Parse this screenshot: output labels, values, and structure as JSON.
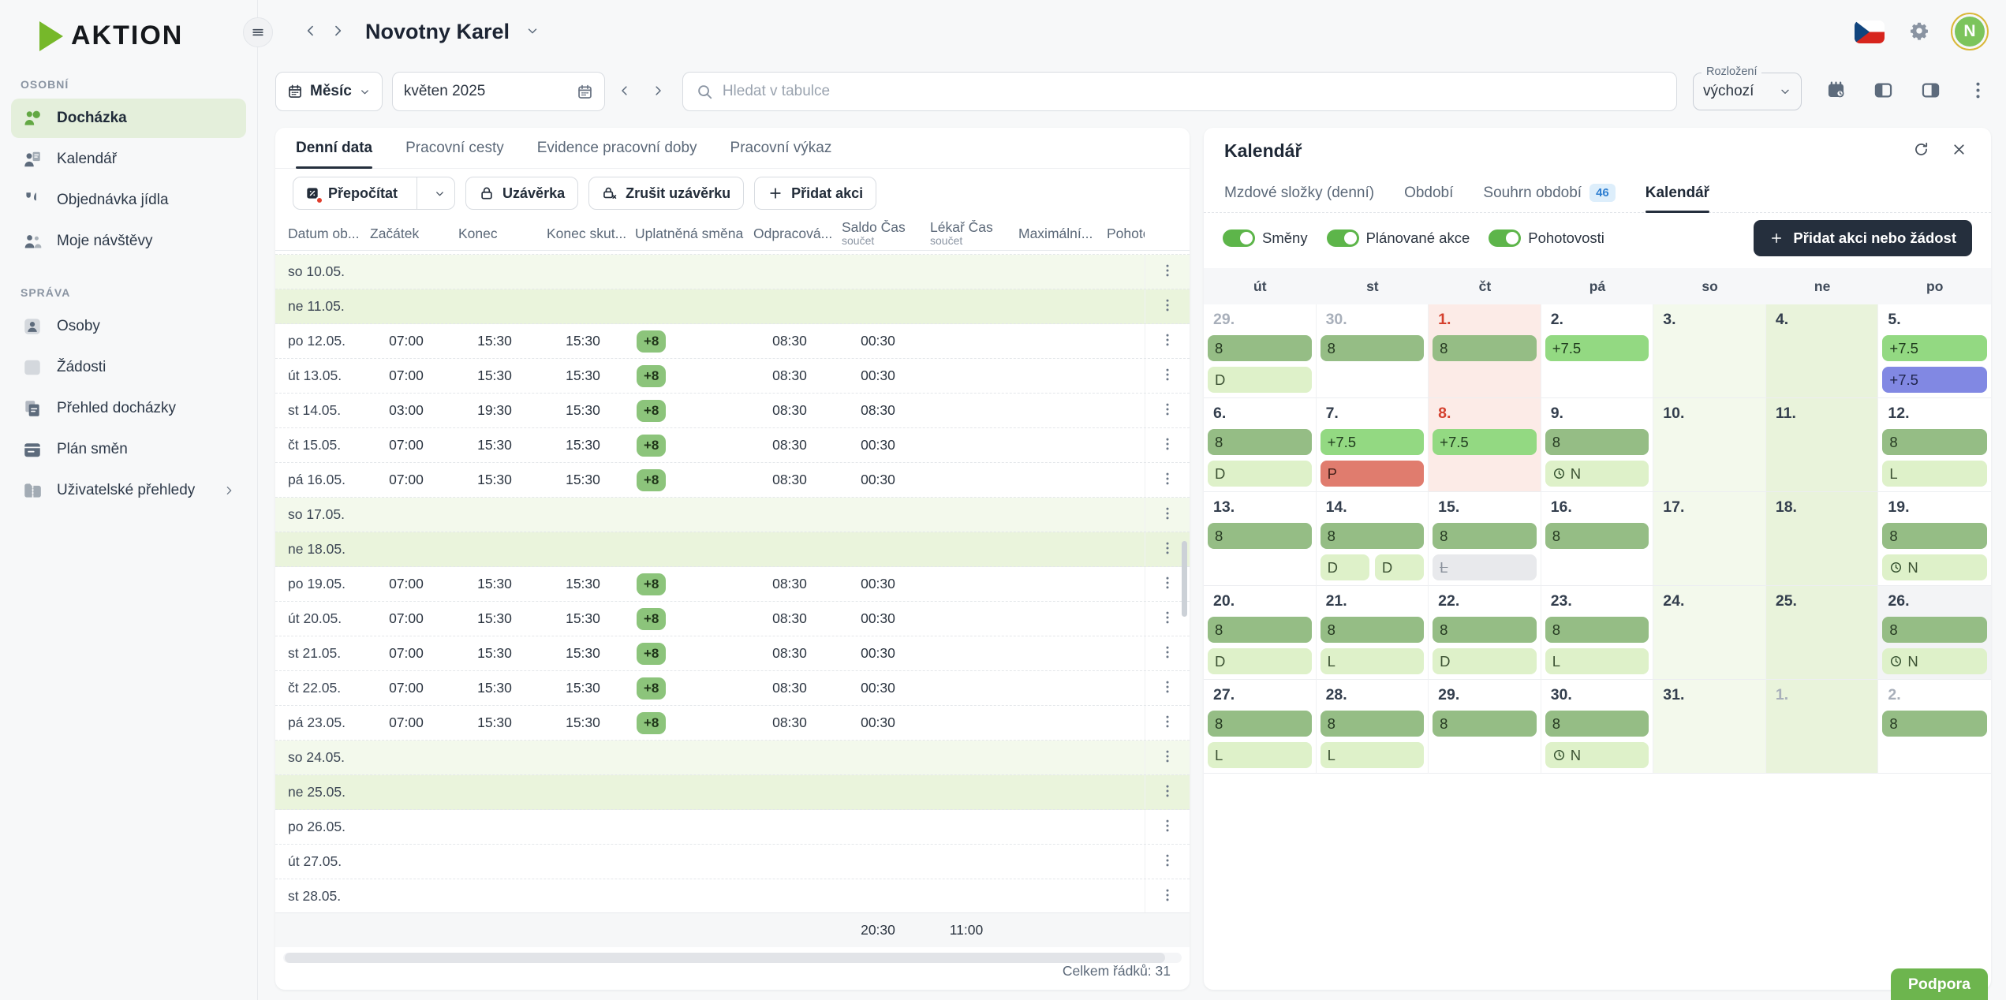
{
  "logo": {
    "text": "aktion"
  },
  "nav": {
    "title": "Novotny Karel"
  },
  "account": {
    "avatar_initial": "N"
  },
  "sidebar": {
    "sections": [
      {
        "label": "OSOBNÍ",
        "items": [
          {
            "label": "Docházka",
            "icon": "attendance",
            "active": true
          },
          {
            "label": "Kalendář",
            "icon": "calendar-person"
          },
          {
            "label": "Objednávka jídla",
            "icon": "meal"
          },
          {
            "label": "Moje návštěvy",
            "icon": "visits"
          }
        ]
      },
      {
        "label": "SPRÁVA",
        "items": [
          {
            "label": "Osoby",
            "icon": "person"
          },
          {
            "label": "Žádosti",
            "icon": "requests"
          },
          {
            "label": "Přehled docházky",
            "icon": "overview"
          },
          {
            "label": "Plán směn",
            "icon": "shift-plan"
          },
          {
            "label": "Uživatelské přehledy",
            "icon": "user-reports",
            "chevron": true
          }
        ]
      }
    ]
  },
  "toolbar": {
    "period_mode": "Měsíc",
    "period_value": "květen 2025",
    "search_placeholder": "Hledat v tabulce",
    "layout_label": "Rozložení",
    "layout_value": "výchozí"
  },
  "table": {
    "tabs": [
      {
        "label": "Denní data",
        "active": true
      },
      {
        "label": "Pracovní cesty"
      },
      {
        "label": "Evidence pracovní doby"
      },
      {
        "label": "Pracovní výkaz"
      }
    ],
    "actions": {
      "recalculate": "Přepočítat",
      "closure": "Uzávěrka",
      "cancel_closure": "Zrušit uzávěrku",
      "add_action": "Přidat akci"
    },
    "columns": [
      {
        "label": "Datum ob..."
      },
      {
        "label": "Začátek"
      },
      {
        "label": "Konec"
      },
      {
        "label": "Konec skut..."
      },
      {
        "label": "Uplatněná směna"
      },
      {
        "label": "Odpracová..."
      },
      {
        "label": "Saldo Čas",
        "sub": "součet"
      },
      {
        "label": "Lékař Čas",
        "sub": "součet"
      },
      {
        "label": "Maximální..."
      },
      {
        "label": "Pohoto"
      }
    ],
    "rows": [
      {
        "date": "so 10.05.",
        "kind": "sat"
      },
      {
        "date": "ne 11.05.",
        "kind": "sun"
      },
      {
        "date": "po 12.05.",
        "start": "07:00",
        "end": "15:30",
        "end_actual": "15:30",
        "shift": "+8",
        "worked": "08:30",
        "saldo": "00:30"
      },
      {
        "date": "út 13.05.",
        "start": "07:00",
        "end": "15:30",
        "end_actual": "15:30",
        "shift": "+8",
        "worked": "08:30",
        "saldo": "00:30"
      },
      {
        "date": "st 14.05.",
        "start": "03:00",
        "end": "19:30",
        "end_actual": "15:30",
        "shift": "+8",
        "worked": "08:30",
        "saldo": "08:30"
      },
      {
        "date": "čt 15.05.",
        "start": "07:00",
        "end": "15:30",
        "end_actual": "15:30",
        "shift": "+8",
        "worked": "08:30",
        "saldo": "00:30"
      },
      {
        "date": "pá 16.05.",
        "start": "07:00",
        "end": "15:30",
        "end_actual": "15:30",
        "shift": "+8",
        "worked": "08:30",
        "saldo": "00:30"
      },
      {
        "date": "so 17.05.",
        "kind": "sat"
      },
      {
        "date": "ne 18.05.",
        "kind": "sun"
      },
      {
        "date": "po 19.05.",
        "start": "07:00",
        "end": "15:30",
        "end_actual": "15:30",
        "shift": "+8",
        "worked": "08:30",
        "saldo": "00:30"
      },
      {
        "date": "út 20.05.",
        "start": "07:00",
        "end": "15:30",
        "end_actual": "15:30",
        "shift": "+8",
        "worked": "08:30",
        "saldo": "00:30"
      },
      {
        "date": "st 21.05.",
        "start": "07:00",
        "end": "15:30",
        "end_actual": "15:30",
        "shift": "+8",
        "worked": "08:30",
        "saldo": "00:30"
      },
      {
        "date": "čt 22.05.",
        "start": "07:00",
        "end": "15:30",
        "end_actual": "15:30",
        "shift": "+8",
        "worked": "08:30",
        "saldo": "00:30"
      },
      {
        "date": "pá 23.05.",
        "start": "07:00",
        "end": "15:30",
        "end_actual": "15:30",
        "shift": "+8",
        "worked": "08:30",
        "saldo": "00:30"
      },
      {
        "date": "so 24.05.",
        "kind": "sat"
      },
      {
        "date": "ne 25.05.",
        "kind": "sun"
      },
      {
        "date": "po 26.05."
      },
      {
        "date": "út 27.05."
      },
      {
        "date": "st 28.05."
      }
    ],
    "totals": {
      "saldo": "20:30",
      "doctor": "11:00"
    },
    "row_count": "Celkem řádků: 31"
  },
  "panel": {
    "title": "Kalendář",
    "tabs": [
      {
        "label": "Mzdové složky (denní)"
      },
      {
        "label": "Období"
      },
      {
        "label": "Souhrn období",
        "badge": "46"
      },
      {
        "label": "Kalendář",
        "active": true
      }
    ],
    "toggles": [
      {
        "label": "Směny",
        "on": true
      },
      {
        "label": "Plánované akce",
        "on": true
      },
      {
        "label": "Pohotovosti",
        "on": true
      }
    ],
    "add_button": "Přidat akci nebo žádost",
    "weekdays": [
      "út",
      "st",
      "čt",
      "pá",
      "so",
      "ne",
      "po"
    ],
    "weeks": [
      [
        {
          "day": "29.",
          "muted": true,
          "bars": [
            [
              {
                "t": "8",
                "k": "shift"
              }
            ],
            [
              {
                "t": "D",
                "k": "light"
              }
            ]
          ]
        },
        {
          "day": "30.",
          "muted": true,
          "bars": [
            [
              {
                "t": "8",
                "k": "shift"
              }
            ]
          ]
        },
        {
          "day": "1.",
          "holiday": true,
          "bars": [
            [
              {
                "t": "8",
                "k": "shift"
              }
            ]
          ]
        },
        {
          "day": "2.",
          "bars": [
            [
              {
                "t": "+7.5",
                "k": "plan"
              }
            ]
          ]
        },
        {
          "day": "3."
        },
        {
          "day": "4."
        },
        {
          "day": "5.",
          "bars": [
            [
              {
                "t": "+7.5",
                "k": "plan"
              }
            ],
            [
              {
                "t": "+7.5",
                "k": "standby"
              }
            ]
          ]
        }
      ],
      [
        {
          "day": "6.",
          "bars": [
            [
              {
                "t": "8",
                "k": "shift"
              }
            ],
            [
              {
                "t": "D",
                "k": "light"
              }
            ]
          ]
        },
        {
          "day": "7.",
          "bars": [
            [
              {
                "t": "+7.5",
                "k": "plan"
              }
            ],
            [
              {
                "t": "P",
                "k": "absence"
              }
            ]
          ]
        },
        {
          "day": "8.",
          "holiday": true,
          "bars": [
            [
              {
                "t": "+7.5",
                "k": "plan"
              }
            ]
          ]
        },
        {
          "day": "9.",
          "bars": [
            [
              {
                "t": "8",
                "k": "shift"
              }
            ],
            [
              {
                "t": "N",
                "k": "light",
                "icon": "clock"
              }
            ]
          ]
        },
        {
          "day": "10."
        },
        {
          "day": "11."
        },
        {
          "day": "12.",
          "bars": [
            [
              {
                "t": "8",
                "k": "shift"
              }
            ],
            [
              {
                "t": "L",
                "k": "light"
              }
            ]
          ]
        }
      ],
      [
        {
          "day": "13.",
          "bars": [
            [
              {
                "t": "8",
                "k": "shift"
              }
            ]
          ]
        },
        {
          "day": "14.",
          "bars": [
            [
              {
                "t": "8",
                "k": "shift"
              }
            ],
            [
              {
                "t": "D",
                "k": "light"
              },
              {
                "t": "D",
                "k": "light"
              }
            ]
          ]
        },
        {
          "day": "15.",
          "bars": [
            [
              {
                "t": "8",
                "k": "shift"
              }
            ],
            [
              {
                "t": "L",
                "k": "cancelled"
              }
            ]
          ]
        },
        {
          "day": "16.",
          "bars": [
            [
              {
                "t": "8",
                "k": "shift"
              }
            ]
          ]
        },
        {
          "day": "17."
        },
        {
          "day": "18."
        },
        {
          "day": "19.",
          "bars": [
            [
              {
                "t": "8",
                "k": "shift"
              }
            ],
            [
              {
                "t": "N",
                "k": "light",
                "icon": "clock"
              }
            ]
          ]
        }
      ],
      [
        {
          "day": "20.",
          "bars": [
            [
              {
                "t": "8",
                "k": "shift"
              }
            ],
            [
              {
                "t": "D",
                "k": "light"
              }
            ]
          ]
        },
        {
          "day": "21.",
          "bars": [
            [
              {
                "t": "8",
                "k": "shift"
              }
            ],
            [
              {
                "t": "L",
                "k": "light"
              }
            ]
          ]
        },
        {
          "day": "22.",
          "bars": [
            [
              {
                "t": "8",
                "k": "shift"
              }
            ],
            [
              {
                "t": "D",
                "k": "light"
              }
            ]
          ]
        },
        {
          "day": "23.",
          "bars": [
            [
              {
                "t": "8",
                "k": "shift"
              }
            ],
            [
              {
                "t": "L",
                "k": "light"
              }
            ]
          ]
        },
        {
          "day": "24."
        },
        {
          "day": "25."
        },
        {
          "day": "26.",
          "today": true,
          "bars": [
            [
              {
                "t": "8",
                "k": "shift"
              }
            ],
            [
              {
                "t": "N",
                "k": "light",
                "icon": "clock"
              }
            ]
          ]
        }
      ],
      [
        {
          "day": "27.",
          "bars": [
            [
              {
                "t": "8",
                "k": "shift"
              }
            ],
            [
              {
                "t": "L",
                "k": "light"
              }
            ]
          ]
        },
        {
          "day": "28.",
          "bars": [
            [
              {
                "t": "8",
                "k": "shift"
              }
            ],
            [
              {
                "t": "L",
                "k": "light"
              }
            ]
          ]
        },
        {
          "day": "29.",
          "bars": [
            [
              {
                "t": "8",
                "k": "shift"
              }
            ]
          ]
        },
        {
          "day": "30.",
          "bars": [
            [
              {
                "t": "8",
                "k": "shift"
              }
            ],
            [
              {
                "t": "N",
                "k": "light",
                "icon": "clock"
              }
            ]
          ]
        },
        {
          "day": "31."
        },
        {
          "day": "1.",
          "muted": true
        },
        {
          "day": "2.",
          "muted": true,
          "bars": [
            [
              {
                "t": "8",
                "k": "shift"
              }
            ]
          ]
        }
      ]
    ]
  },
  "support": {
    "label": "Podpora"
  },
  "colors": {
    "accent_green": "#76b82a",
    "shift_bar": "#95bd85",
    "plan_bar": "#93d982",
    "light_bar": "#def1c9",
    "absence_bar": "#e07c6e",
    "standby_bar": "#8188e3",
    "cancelled_bar": "#e8e9ec",
    "holiday_bg": "#fcebe7",
    "saturday_bg": "#f3f9ec",
    "sunday_bg": "#e9f3db",
    "dark_button": "#252f3d",
    "support_green": "#6db54e"
  }
}
